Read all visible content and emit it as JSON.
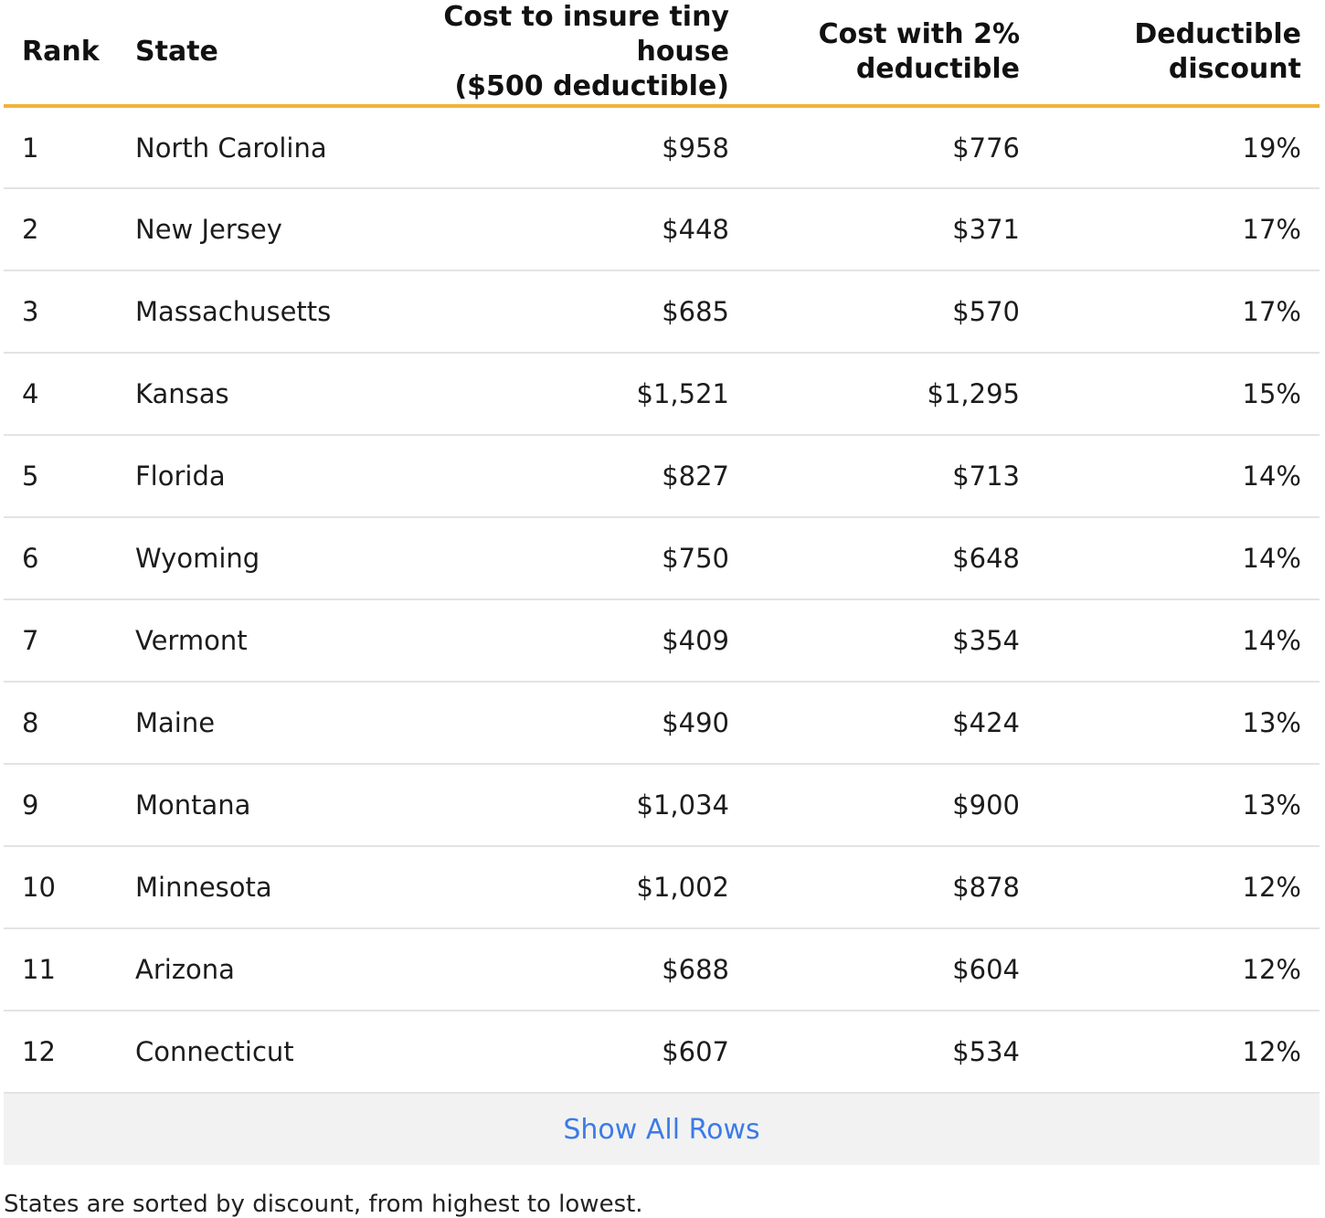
{
  "table": {
    "headers": {
      "rank": "Rank",
      "state": "State",
      "cost_line1": "Cost to insure tiny house",
      "cost_line2": "($500 deductible)",
      "cost2_line1": "Cost with 2%",
      "cost2_line2": "deductible",
      "discount_line1": "Deductible",
      "discount_line2": "discount"
    },
    "rows": [
      {
        "rank": "1",
        "state": "North Carolina",
        "cost": "$958",
        "cost2": "$776",
        "discount": "19%"
      },
      {
        "rank": "2",
        "state": "New Jersey",
        "cost": "$448",
        "cost2": "$371",
        "discount": "17%"
      },
      {
        "rank": "3",
        "state": "Massachusetts",
        "cost": "$685",
        "cost2": "$570",
        "discount": "17%"
      },
      {
        "rank": "4",
        "state": "Kansas",
        "cost": "$1,521",
        "cost2": "$1,295",
        "discount": "15%"
      },
      {
        "rank": "5",
        "state": "Florida",
        "cost": "$827",
        "cost2": "$713",
        "discount": "14%"
      },
      {
        "rank": "6",
        "state": "Wyoming",
        "cost": "$750",
        "cost2": "$648",
        "discount": "14%"
      },
      {
        "rank": "7",
        "state": "Vermont",
        "cost": "$409",
        "cost2": "$354",
        "discount": "14%"
      },
      {
        "rank": "8",
        "state": "Maine",
        "cost": "$490",
        "cost2": "$424",
        "discount": "13%"
      },
      {
        "rank": "9",
        "state": "Montana",
        "cost": "$1,034",
        "cost2": "$900",
        "discount": "13%"
      },
      {
        "rank": "10",
        "state": "Minnesota",
        "cost": "$1,002",
        "cost2": "$878",
        "discount": "12%"
      },
      {
        "rank": "11",
        "state": "Arizona",
        "cost": "$688",
        "cost2": "$604",
        "discount": "12%"
      },
      {
        "rank": "12",
        "state": "Connecticut",
        "cost": "$607",
        "cost2": "$534",
        "discount": "12%"
      }
    ],
    "show_all_label": "Show All Rows",
    "footnote": "States are sorted by discount, from highest to lowest."
  },
  "colors": {
    "header_rule": "#f0b43a",
    "link": "#3b7be6",
    "show_all_bg": "#f2f2f2",
    "row_divider": "#e3e3e3"
  }
}
